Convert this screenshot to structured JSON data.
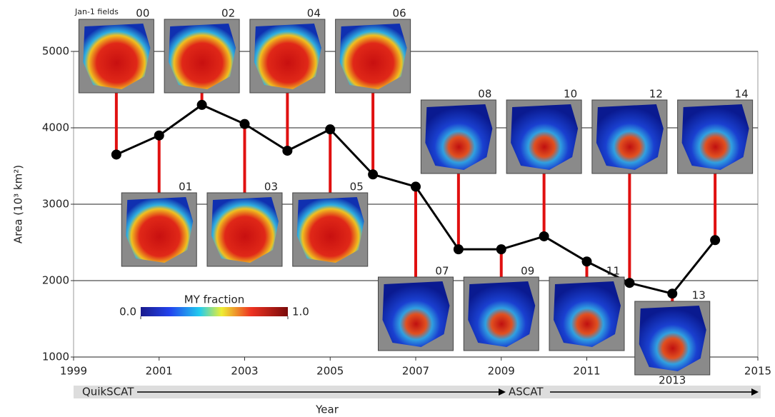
{
  "chart_data": {
    "type": "line",
    "x": [
      2000,
      2001,
      2002,
      2003,
      2004,
      2005,
      2006,
      2007,
      2008,
      2009,
      2010,
      2011,
      2012,
      2013,
      2014
    ],
    "values": [
      3650,
      3900,
      4300,
      4050,
      3700,
      3980,
      3390,
      3230,
      2410,
      2410,
      2580,
      2250,
      1970,
      1830,
      2530
    ],
    "color": "#000000",
    "xlabel": "Year",
    "ylabel": "Area (10³ km²)",
    "xlim": [
      1999,
      2015
    ],
    "xticks": [
      1999,
      2001,
      2003,
      2005,
      2007,
      2009,
      2011,
      2013,
      2015
    ],
    "ylim": [
      1000,
      5000
    ],
    "yticks": [
      1000,
      2000,
      3000,
      4000,
      5000
    ],
    "grid": true,
    "thumbnail_title": "Jan-1 fields",
    "thumbnail_labels": [
      "00",
      "01",
      "02",
      "03",
      "04",
      "05",
      "06",
      "07",
      "08",
      "09",
      "10",
      "11",
      "12",
      "13",
      "14"
    ],
    "connector_color": "#e01010",
    "colorbar": {
      "title": "MY fraction",
      "ticks": [
        {
          "value": 0,
          "label": "0.0"
        },
        {
          "value": 1,
          "label": "1.0"
        }
      ]
    },
    "sensors": [
      "QuikSCAT",
      "ASCAT"
    ]
  }
}
